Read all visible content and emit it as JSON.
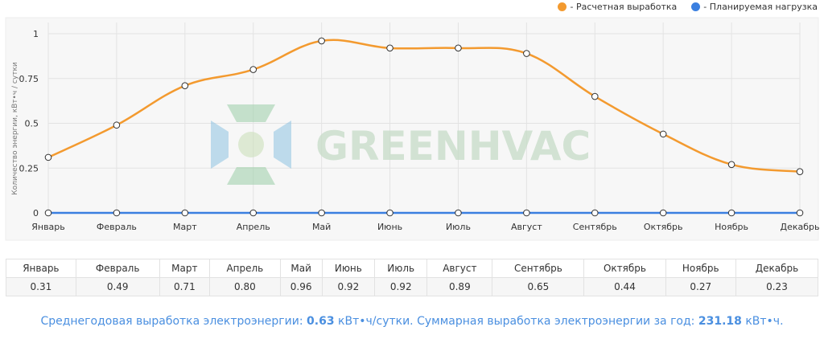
{
  "legend": [
    {
      "label": "- Расчетная выработка",
      "color": "#f39a2f"
    },
    {
      "label": "- Планируемая нагрузка",
      "color": "#3a7fe0"
    }
  ],
  "watermark": "GREENHVAC",
  "chart_data": {
    "type": "line",
    "categories": [
      "Январь",
      "Февраль",
      "Март",
      "Апрель",
      "Май",
      "Июнь",
      "Июль",
      "Август",
      "Сентябрь",
      "Октябрь",
      "Ноябрь",
      "Декабрь"
    ],
    "series": [
      {
        "name": "Расчетная выработка",
        "values": [
          0.31,
          0.49,
          0.71,
          0.8,
          0.96,
          0.92,
          0.92,
          0.89,
          0.65,
          0.44,
          0.27,
          0.23
        ],
        "color": "#f39a2f"
      },
      {
        "name": "Планируемая нагрузка",
        "values": [
          0,
          0,
          0,
          0,
          0,
          0,
          0,
          0,
          0,
          0,
          0,
          0
        ],
        "color": "#3a7fe0"
      }
    ],
    "ylabel": "Количество энергии, кВт•ч / сутки",
    "yticks": [
      "0",
      "0.25",
      "0.5",
      "0.75",
      "1"
    ],
    "ylim": [
      0,
      1
    ],
    "grid": true,
    "legend_position": "top-right"
  },
  "table": {
    "headers": [
      "Январь",
      "Февраль",
      "Март",
      "Апрель",
      "Май",
      "Июнь",
      "Июль",
      "Август",
      "Сентябрь",
      "Октябрь",
      "Ноябрь",
      "Декабрь"
    ],
    "values": [
      "0.31",
      "0.49",
      "0.71",
      "0.80",
      "0.96",
      "0.92",
      "0.92",
      "0.89",
      "0.65",
      "0.44",
      "0.27",
      "0.23"
    ]
  },
  "summary": {
    "prefix": "Среднегодовая выработка электроэнергии: ",
    "avg": "0.63",
    "mid": " кВт•ч/сутки. Суммарная выработка электроэнергии за год: ",
    "total": "231.18",
    "suffix": " кВт•ч."
  }
}
